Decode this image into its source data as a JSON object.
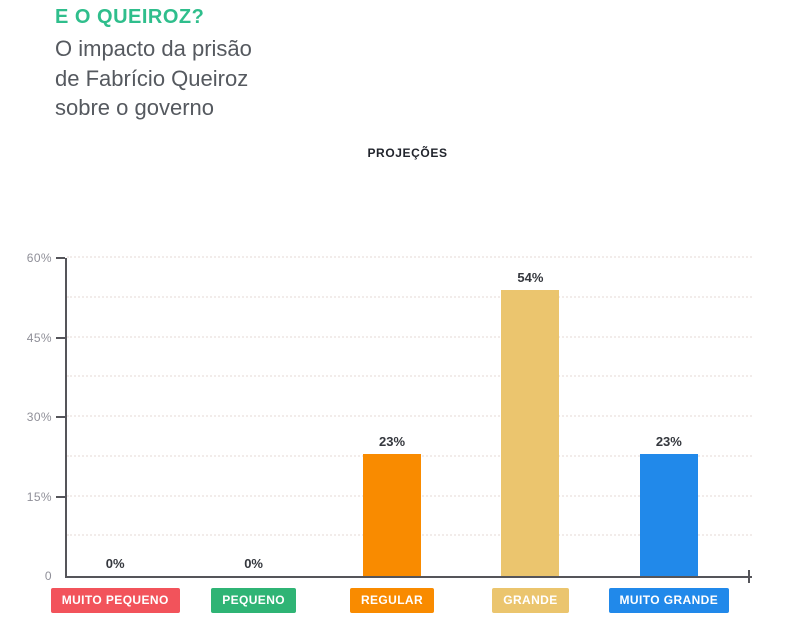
{
  "header": {
    "title": "E O QUEIROZ?",
    "title_color": "#2FBE8C",
    "subtitle_lines": {
      "0": "O impacto da prisão",
      "1": "de Fabrício Queiroz",
      "2": "sobre o governo"
    }
  },
  "chart_data": {
    "type": "bar",
    "title": "PROJEÇÕES",
    "categories": [
      "MUITO PEQUENO",
      "PEQUENO",
      "REGULAR",
      "GRANDE",
      "MUITO GRANDE"
    ],
    "values": [
      0,
      0,
      23,
      54,
      23
    ],
    "value_labels": [
      "0%",
      "0%",
      "23%",
      "54%",
      "23%"
    ],
    "bar_colors": [
      "#F2535B",
      "#2FB475",
      "#F98B00",
      "#EBC56E",
      "#2189EA"
    ],
    "xlabel": "",
    "ylabel": "",
    "ylim": [
      0,
      60
    ],
    "ytick_values": [
      60,
      45,
      30,
      15,
      0
    ],
    "ytick_labels": [
      "60%",
      "45%",
      "30%",
      "15%",
      "0"
    ],
    "grid": {
      "style": "dotted",
      "orientation": "horizontal",
      "step": 7.5,
      "color": "#F2ECEA"
    },
    "legend_position": "none",
    "axis_color": "#55555A",
    "label_color": "#34373D",
    "ytick_label_color": "#8F8F98"
  }
}
